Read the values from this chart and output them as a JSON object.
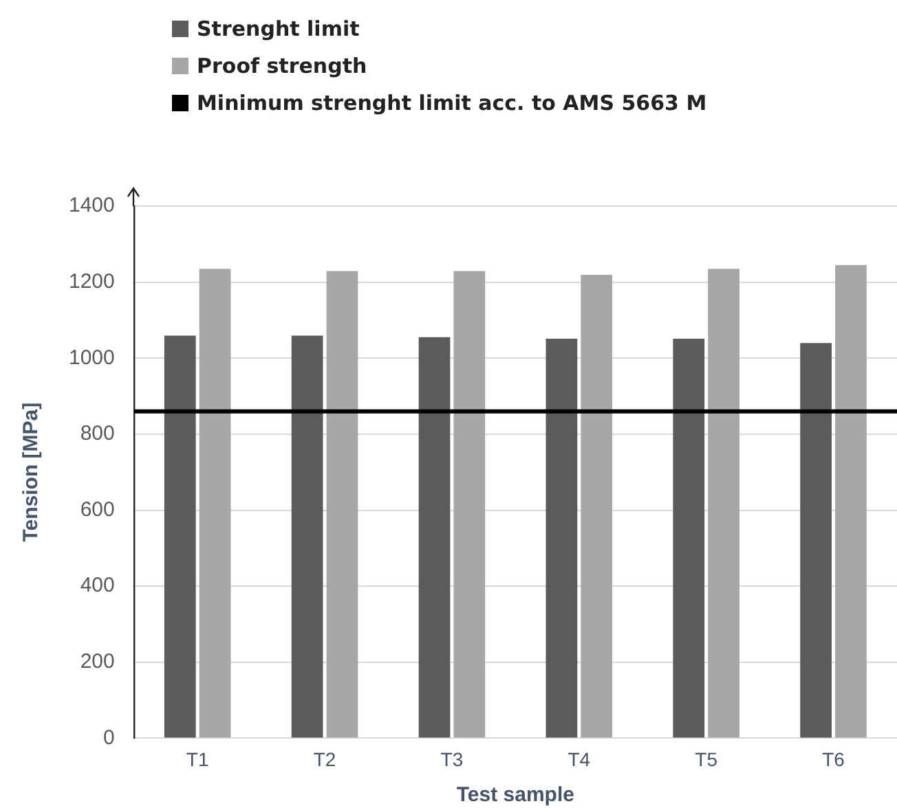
{
  "chart_data": {
    "type": "bar",
    "xlabel": "Test sample",
    "ylabel": "Tension [MPa]",
    "categories": [
      "T1",
      "T2",
      "T3",
      "T4",
      "T5",
      "T6"
    ],
    "series": [
      {
        "name": "Strenght limit",
        "color": "#595b5d",
        "values": [
          1059,
          1059,
          1055,
          1051,
          1051,
          1040
        ]
      },
      {
        "name": "Proof strength",
        "color": "#a5a7a8",
        "values": [
          1235,
          1229,
          1229,
          1219,
          1235,
          1245
        ]
      }
    ],
    "ref_lines": [
      {
        "axis": "y",
        "value": 860,
        "label": "Minimum strenght limit acc. to AMS 5663 M",
        "color": "#000000"
      }
    ],
    "ylim": [
      0,
      1400
    ],
    "yticks": [
      0,
      200,
      400,
      600,
      800,
      1000,
      1200,
      1400
    ],
    "grid": "y",
    "legend": "top"
  }
}
